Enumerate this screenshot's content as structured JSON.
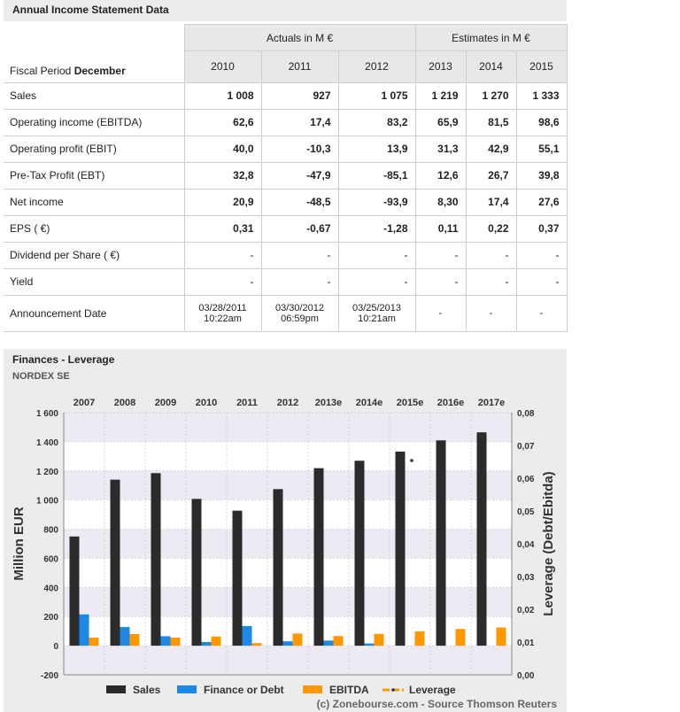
{
  "income": {
    "title": "Annual Income Statement Data",
    "actuals_label": "Actuals in M €",
    "estimates_label": "Estimates in M €",
    "fiscal_label": "Fiscal Period",
    "fiscal_month": "December",
    "years": [
      "2010",
      "2011",
      "2012",
      "2013",
      "2014",
      "2015"
    ],
    "rows": [
      {
        "label": "Sales",
        "values": [
          "1 008",
          "927",
          "1 075",
          "1 219",
          "1 270",
          "1 333"
        ]
      },
      {
        "label": "Operating income (EBITDA)",
        "values": [
          "62,6",
          "17,4",
          "83,2",
          "65,9",
          "81,5",
          "98,6"
        ]
      },
      {
        "label": "Operating profit (EBIT)",
        "values": [
          "40,0",
          "-10,3",
          "13,9",
          "31,3",
          "42,9",
          "55,1"
        ]
      },
      {
        "label": "Pre-Tax Profit (EBT)",
        "values": [
          "32,8",
          "-47,9",
          "-85,1",
          "12,6",
          "26,7",
          "39,8"
        ]
      },
      {
        "label": "Net income",
        "values": [
          "20,9",
          "-48,5",
          "-93,9",
          "8,30",
          "17,4",
          "27,6"
        ]
      },
      {
        "label": "EPS ( €)",
        "values": [
          "0,31",
          "-0,67",
          "-1,28",
          "0,11",
          "0,22",
          "0,37"
        ]
      },
      {
        "label": "Dividend per Share ( €)",
        "values": [
          "-",
          "-",
          "-",
          "-",
          "-",
          "-"
        ]
      },
      {
        "label": "Yield",
        "values": [
          "-",
          "-",
          "-",
          "-",
          "-",
          "-"
        ]
      }
    ],
    "announcement": {
      "label": "Announcement Date",
      "values": [
        [
          "03/28/2011",
          "10:22am"
        ],
        [
          "03/30/2012",
          "06:59pm"
        ],
        [
          "03/25/2013",
          "10:21am"
        ],
        [
          "-",
          ""
        ],
        [
          "-",
          ""
        ],
        [
          "-",
          ""
        ]
      ]
    }
  },
  "chart_data": {
    "type": "bar",
    "title": "Finances - Leverage",
    "subtitle": "NORDEX SE",
    "categories": [
      "2007",
      "2008",
      "2009",
      "2010",
      "2011",
      "2012",
      "2013e",
      "2014e",
      "2015e",
      "2016e",
      "2017e"
    ],
    "series": [
      {
        "name": "Sales",
        "color": "#2b2b2b",
        "values": [
          750,
          1140,
          1185,
          1008,
          927,
          1075,
          1219,
          1270,
          1333,
          1410,
          1465
        ]
      },
      {
        "name": "Finance or Debt",
        "color": "#1e88e5",
        "values": [
          215,
          128,
          65,
          25,
          135,
          30,
          35,
          15,
          0,
          0,
          0
        ]
      },
      {
        "name": "EBITDA",
        "color": "#ff9800",
        "values": [
          55,
          80,
          55,
          62.6,
          17.4,
          83.2,
          65.9,
          81.5,
          98.6,
          115,
          125
        ]
      },
      {
        "name": "Leverage",
        "color": "#ff9800",
        "values": [
          null,
          null,
          null,
          null,
          null,
          null,
          null,
          null,
          0.0654,
          null,
          null
        ]
      }
    ],
    "ylabel": "Million EUR",
    "y2label": "Leverage (Debt/Ebitda)",
    "ylim": [
      -200,
      1600
    ],
    "yticks": [
      -200,
      0,
      200,
      400,
      600,
      800,
      1000,
      1200,
      1400,
      1600
    ],
    "ytick_labels": [
      "-200",
      "0",
      "200",
      "400",
      "600",
      "800",
      "1 000",
      "1 200",
      "1 400",
      "1 600"
    ],
    "y2lim": [
      0,
      0.08
    ],
    "y2ticks": [
      0,
      0.01,
      0.02,
      0.03,
      0.04,
      0.05,
      0.06,
      0.07,
      0.08
    ],
    "y2tick_labels": [
      "0,00",
      "0,01",
      "0,02",
      "0,03",
      "0,04",
      "0,05",
      "0,06",
      "0,07",
      "0,08"
    ],
    "source": "(c) Zonebourse.com - Source Thomson Reuters"
  }
}
